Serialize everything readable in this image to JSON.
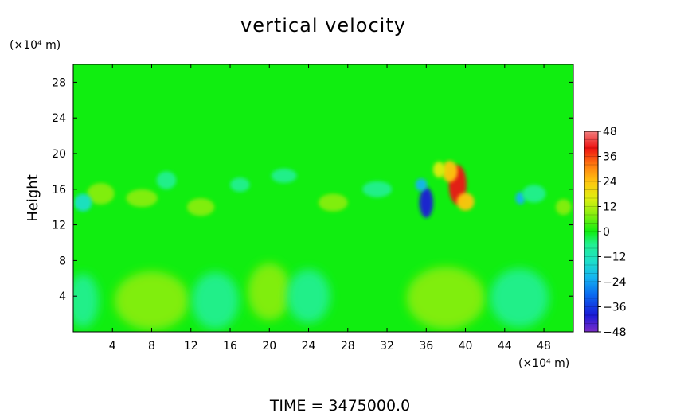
{
  "chart_data": {
    "type": "heatmap",
    "title": "vertical velocity",
    "ylabel": "Height",
    "y_unit": "(×10⁴ m)",
    "x_unit": "(×10⁴ m)",
    "footer": "TIME  =  3475000.0",
    "xlim": [
      0,
      51
    ],
    "ylim": [
      0,
      30
    ],
    "x_ticks": [
      4,
      8,
      12,
      16,
      20,
      24,
      28,
      32,
      36,
      40,
      44,
      48
    ],
    "y_ticks": [
      4,
      8,
      12,
      16,
      20,
      24,
      28
    ],
    "colorbar": {
      "min": -48,
      "max": 48,
      "ticks": [
        48,
        36,
        24,
        12,
        0,
        -12,
        -24,
        -36,
        -48
      ],
      "stops": [
        {
          "v": -48,
          "color": "#7a2cc8"
        },
        {
          "v": -40,
          "color": "#1a1ad8"
        },
        {
          "v": -30,
          "color": "#0a6cf0"
        },
        {
          "v": -22,
          "color": "#16b4f0"
        },
        {
          "v": -14,
          "color": "#1ee0c8"
        },
        {
          "v": -6,
          "color": "#22f090"
        },
        {
          "v": 0,
          "color": "#10ee10"
        },
        {
          "v": 8,
          "color": "#86ee10"
        },
        {
          "v": 16,
          "color": "#e0ee10"
        },
        {
          "v": 24,
          "color": "#ffc410"
        },
        {
          "v": 32,
          "color": "#ff7a10"
        },
        {
          "v": 40,
          "color": "#ee1212"
        },
        {
          "v": 48,
          "color": "#f08080"
        }
      ]
    },
    "features": [
      {
        "x": 39.2,
        "y": 16.5,
        "rx": 0.9,
        "ry": 2.2,
        "value": 44
      },
      {
        "x": 38.4,
        "y": 18.0,
        "rx": 0.8,
        "ry": 1.2,
        "value": 26
      },
      {
        "x": 37.3,
        "y": 18.2,
        "rx": 0.6,
        "ry": 0.9,
        "value": 20
      },
      {
        "x": 40.0,
        "y": 14.6,
        "rx": 0.9,
        "ry": 1.0,
        "value": 22
      },
      {
        "x": 36.0,
        "y": 14.5,
        "rx": 0.7,
        "ry": 1.7,
        "value": -36
      },
      {
        "x": 35.5,
        "y": 16.5,
        "rx": 0.6,
        "ry": 0.7,
        "value": -20
      },
      {
        "x": 45.6,
        "y": 15.0,
        "rx": 0.5,
        "ry": 0.7,
        "value": -22
      },
      {
        "x": 2.8,
        "y": 15.5,
        "rx": 1.4,
        "ry": 1.2,
        "value": 10
      },
      {
        "x": 1.0,
        "y": 14.5,
        "rx": 0.9,
        "ry": 1.0,
        "value": -10
      },
      {
        "x": 7.0,
        "y": 15.0,
        "rx": 1.6,
        "ry": 1.0,
        "value": 10
      },
      {
        "x": 9.5,
        "y": 17.0,
        "rx": 1.0,
        "ry": 1.0,
        "value": -8
      },
      {
        "x": 21.5,
        "y": 17.5,
        "rx": 1.3,
        "ry": 0.8,
        "value": -8
      },
      {
        "x": 26.5,
        "y": 14.5,
        "rx": 1.5,
        "ry": 1.0,
        "value": 8
      },
      {
        "x": 31.0,
        "y": 16.0,
        "rx": 1.5,
        "ry": 0.9,
        "value": -7
      },
      {
        "x": 47.0,
        "y": 15.5,
        "rx": 1.2,
        "ry": 1.0,
        "value": -9
      },
      {
        "x": 50.0,
        "y": 14.0,
        "rx": 0.8,
        "ry": 0.9,
        "value": 10
      },
      {
        "x": 13.0,
        "y": 14.0,
        "rx": 1.4,
        "ry": 1.0,
        "value": 6
      },
      {
        "x": 17.0,
        "y": 16.5,
        "rx": 1.0,
        "ry": 0.8,
        "value": -6
      },
      {
        "x": 8.0,
        "y": 3.5,
        "rx": 3.8,
        "ry": 3.3,
        "value": 8
      },
      {
        "x": 20.0,
        "y": 4.5,
        "rx": 2.2,
        "ry": 3.2,
        "value": 8
      },
      {
        "x": 38.0,
        "y": 3.8,
        "rx": 4.0,
        "ry": 3.5,
        "value": 8
      },
      {
        "x": 14.5,
        "y": 3.5,
        "rx": 2.4,
        "ry": 3.2,
        "value": -8
      },
      {
        "x": 24.0,
        "y": 4.0,
        "rx": 2.2,
        "ry": 3.0,
        "value": -7
      },
      {
        "x": 45.5,
        "y": 3.8,
        "rx": 3.0,
        "ry": 3.3,
        "value": -9
      },
      {
        "x": 1.0,
        "y": 3.5,
        "rx": 1.6,
        "ry": 3.0,
        "value": -6
      }
    ]
  }
}
